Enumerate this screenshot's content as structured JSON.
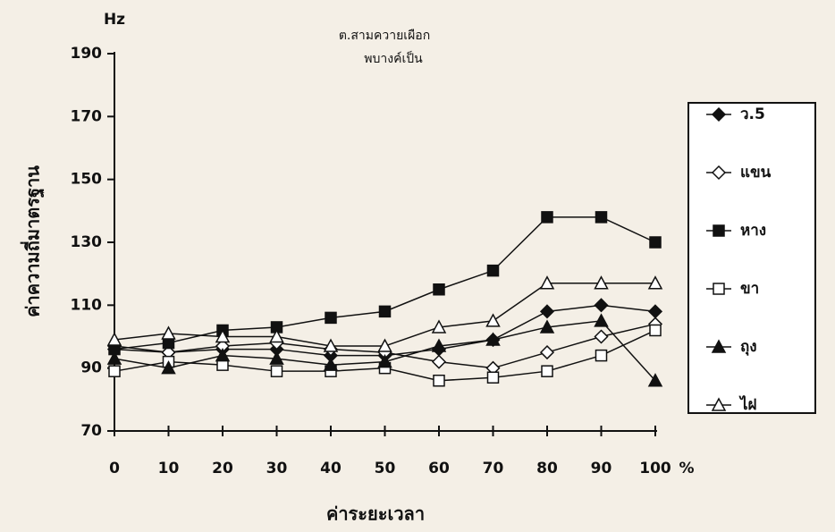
{
  "chart_data": {
    "type": "line",
    "y_unit": "Hz",
    "annotations": [
      "ต.สามควายเผือก",
      "พบางค์เป็น"
    ],
    "xlabel": "ค่าระยะเวลา",
    "x_unit": "%",
    "ylabel": "ค่าความถี่มาตรฐาน",
    "x": [
      0,
      10,
      20,
      30,
      40,
      50,
      60,
      70,
      80,
      90,
      100
    ],
    "xlim": [
      0,
      100
    ],
    "xticks": [
      0,
      10,
      20,
      30,
      40,
      50,
      60,
      70,
      80,
      90,
      100
    ],
    "ylim": [
      70,
      190
    ],
    "yticks": [
      70,
      90,
      110,
      130,
      150,
      170,
      190
    ],
    "legend": "right",
    "series": [
      {
        "name": "ว.5",
        "color": "#111111",
        "marker": "diamond",
        "filled": true,
        "values": [
          96,
          95,
          96,
          96,
          94,
          94,
          96,
          99,
          108,
          110,
          108
        ]
      },
      {
        "name": "แขน",
        "color": "#111111",
        "marker": "diamond",
        "filled": false,
        "values": [
          97,
          95,
          97,
          98,
          96,
          95,
          92,
          90,
          95,
          100,
          104
        ]
      },
      {
        "name": "หาง",
        "color": "#111111",
        "marker": "square",
        "filled": true,
        "values": [
          96,
          98,
          102,
          103,
          106,
          108,
          115,
          121,
          138,
          138,
          130
        ]
      },
      {
        "name": "ขา",
        "color": "#111111",
        "marker": "square",
        "filled": false,
        "values": [
          89,
          92,
          91,
          89,
          89,
          90,
          86,
          87,
          89,
          94,
          102
        ]
      },
      {
        "name": "ถุง",
        "color": "#111111",
        "marker": "triangle",
        "filled": true,
        "values": [
          93,
          90,
          94,
          93,
          91,
          92,
          97,
          99,
          103,
          105,
          86
        ]
      },
      {
        "name": "ไฝ",
        "color": "#111111",
        "marker": "triangle",
        "filled": false,
        "values": [
          99,
          101,
          100,
          100,
          97,
          97,
          103,
          105,
          117,
          117,
          117
        ]
      }
    ]
  }
}
